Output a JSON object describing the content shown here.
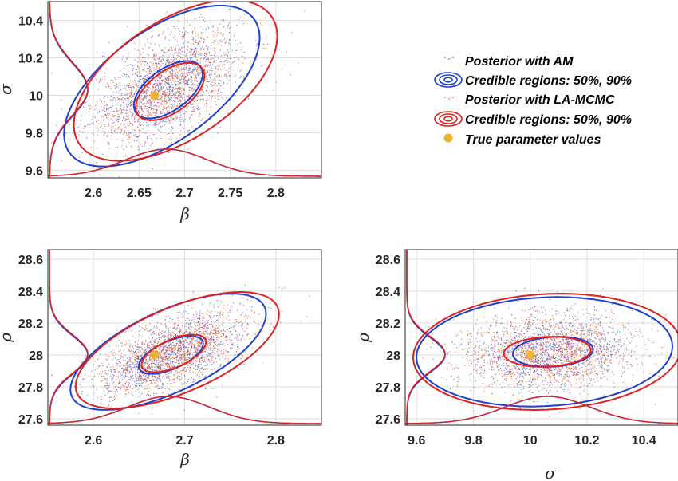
{
  "colors": {
    "am": "#1f3fd1",
    "am_scatter": "#3b88d6",
    "lamcmc": "#e0211f",
    "lamcmc_scatter": "#e8703a",
    "extra_scatter": "#9b3fb4",
    "true_point": "#f0b030",
    "marginal_overlap": "#8a3fb8"
  },
  "legend": {
    "items": [
      {
        "label": "Posterior with AM",
        "marker": "dot",
        "color": "#3b88d6"
      },
      {
        "label": "Credible regions: 50%, 90%",
        "marker": "rings",
        "color": "#1f3fd1"
      },
      {
        "label": "Posterior with LA-MCMC",
        "marker": "dot",
        "color": "#e8703a"
      },
      {
        "label": "Credible regions: 50%, 90%",
        "marker": "rings",
        "color": "#e0211f"
      },
      {
        "label": "True parameter values",
        "marker": "filled-dot",
        "color": "#f0b030"
      }
    ]
  },
  "chart_data": [
    {
      "type": "scatter",
      "xlabel": "β",
      "ylabel": "σ",
      "xlim": [
        2.55,
        2.85
      ],
      "ylim": [
        9.56,
        10.5
      ],
      "xticks": [
        "2.6",
        "2.65",
        "2.7",
        "2.75",
        "2.8"
      ],
      "yticks": [
        "9.6",
        "9.8",
        "10",
        "10.2",
        "10.4"
      ],
      "grid": true,
      "true_value": {
        "x": 2.667,
        "y": 10.0
      },
      "posterior": {
        "mean": [
          2.68,
          10.05
        ],
        "sd": [
          0.04,
          0.15
        ],
        "corr": 0.55
      },
      "series": [
        {
          "name": "AM",
          "regions": [
            {
              "level": 0.5,
              "center": [
                2.682,
                10.03
              ],
              "sd": [
                0.032,
                0.13
              ],
              "corr": 0.55
            },
            {
              "level": 0.9,
              "center": [
                2.675,
                10.05
              ],
              "sd": [
                0.05,
                0.2
              ],
              "corr": 0.6
            }
          ]
        },
        {
          "name": "LA-MCMC",
          "regions": [
            {
              "level": 0.5,
              "center": [
                2.684,
                10.02
              ],
              "sd": [
                0.032,
                0.13
              ],
              "corr": 0.55
            },
            {
              "level": 0.9,
              "center": [
                2.69,
                10.08
              ],
              "sd": [
                0.052,
                0.2
              ],
              "corr": 0.55
            }
          ]
        }
      ],
      "x_marginal": {
        "mean": 2.68,
        "sd": 0.045
      },
      "y_marginal": {
        "mean": 10.03,
        "sd": 0.14
      }
    },
    {
      "type": "scatter",
      "xlabel": "β",
      "ylabel": "ρ",
      "xlim": [
        2.55,
        2.85
      ],
      "ylim": [
        27.56,
        28.66
      ],
      "xticks": [
        "2.6",
        "2.7",
        "2.8"
      ],
      "yticks": [
        "27.6",
        "27.8",
        "28",
        "28.2",
        "28.4",
        "28.6"
      ],
      "grid": true,
      "true_value": {
        "x": 2.667,
        "y": 28.0
      },
      "posterior": {
        "mean": [
          2.685,
          28.01
        ],
        "sd": [
          0.04,
          0.13
        ],
        "corr": 0.6
      },
      "series": [
        {
          "name": "AM",
          "regions": [
            {
              "level": 0.5,
              "center": [
                2.685,
                28.0
              ],
              "sd": [
                0.03,
                0.1
              ],
              "corr": 0.6
            },
            {
              "level": 0.9,
              "center": [
                2.682,
                28.02
              ],
              "sd": [
                0.05,
                0.17
              ],
              "corr": 0.65
            }
          ]
        },
        {
          "name": "LA-MCMC",
          "regions": [
            {
              "level": 0.5,
              "center": [
                2.688,
                28.01
              ],
              "sd": [
                0.03,
                0.1
              ],
              "corr": 0.6
            },
            {
              "level": 0.9,
              "center": [
                2.692,
                28.03
              ],
              "sd": [
                0.052,
                0.17
              ],
              "corr": 0.62
            }
          ]
        }
      ],
      "x_marginal": {
        "mean": 2.682,
        "sd": 0.045
      },
      "y_marginal": {
        "mean": 28.0,
        "sd": 0.12
      }
    },
    {
      "type": "scatter",
      "xlabel": "σ",
      "ylabel": "ρ",
      "xlim": [
        9.56,
        10.52
      ],
      "ylim": [
        27.56,
        28.66
      ],
      "xticks": [
        "9.6",
        "9.8",
        "10",
        "10.2",
        "10.4"
      ],
      "yticks": [
        "27.6",
        "27.8",
        "28",
        "28.2",
        "28.4",
        "28.6"
      ],
      "grid": true,
      "true_value": {
        "x": 10.0,
        "y": 28.0
      },
      "posterior": {
        "mean": [
          10.06,
          28.02
        ],
        "sd": [
          0.15,
          0.12
        ],
        "corr": 0.15
      },
      "series": [
        {
          "name": "AM",
          "regions": [
            {
              "level": 0.5,
              "center": [
                10.08,
                28.02
              ],
              "sd": [
                0.12,
                0.08
              ],
              "corr": 0.15
            },
            {
              "level": 0.9,
              "center": [
                10.05,
                28.02
              ],
              "sd": [
                0.21,
                0.16
              ],
              "corr": 0.1
            }
          ]
        },
        {
          "name": "LA-MCMC",
          "regions": [
            {
              "level": 0.5,
              "center": [
                10.06,
                28.02
              ],
              "sd": [
                0.13,
                0.08
              ],
              "corr": 0.12
            },
            {
              "level": 0.9,
              "center": [
                10.06,
                28.02
              ],
              "sd": [
                0.22,
                0.17
              ],
              "corr": 0.1
            }
          ]
        }
      ],
      "x_marginal": {
        "mean": 10.06,
        "sd": 0.15
      },
      "y_marginal": {
        "mean": 28.0,
        "sd": 0.11
      }
    }
  ]
}
